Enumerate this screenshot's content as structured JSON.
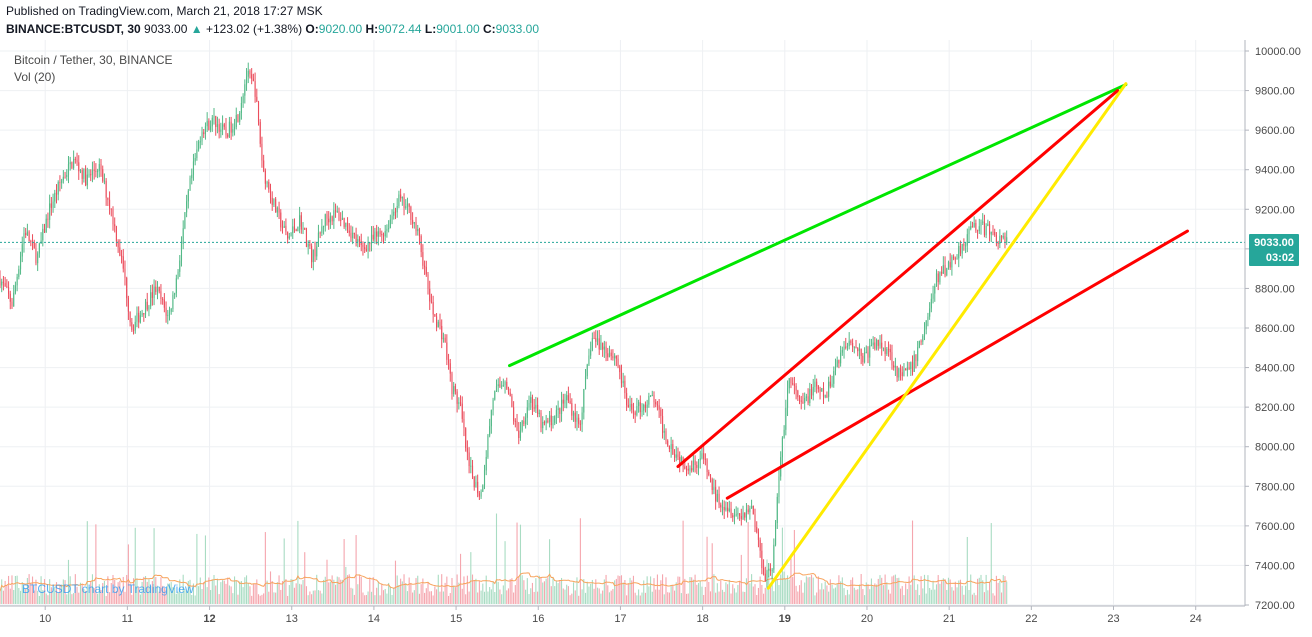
{
  "header": {
    "published": "Published on TradingView.com, March 21, 2018 17:27 MSK",
    "symbol": "BINANCE:BTCUSDT, 30",
    "last": "9033.00",
    "change": "+123.02 (+1.38%)",
    "open_label": "O:",
    "open": "9020.00",
    "high_label": "H:",
    "high": "9072.44",
    "low_label": "L:",
    "low": "9001.00",
    "close_label": "C:",
    "close": "9033.00"
  },
  "legend": {
    "title": "Bitcoin / Tether, 30, BINANCE",
    "volume": "Vol (20)"
  },
  "watermark": "BTCUSDT chart by TradingView",
  "price_badge": {
    "price": "9033.00",
    "countdown": "03:02"
  },
  "colors": {
    "up": "#53b987",
    "down": "#eb4d5c",
    "vol_up": "#a9dcc3",
    "vol_down": "#f5a6ae",
    "vol_ma": "#f7a35c",
    "green_line": "#00e600",
    "red_line": "#ff0000",
    "yellow_line": "#ffeb00",
    "price_line": "#26a69a",
    "watermark": "#2196f3"
  },
  "chart_data": {
    "type": "candlestick",
    "symbol": "BTCUSDT",
    "interval": "30",
    "exchange": "BINANCE",
    "y_axis": {
      "ylim": [
        7200,
        10000
      ],
      "ticks": [
        "10000.00",
        "9800.00",
        "9600.00",
        "9400.00",
        "9200.00",
        "9000.00",
        "8800.00",
        "8600.00",
        "8400.00",
        "8200.00",
        "8000.00",
        "7800.00",
        "7600.00",
        "7400.00",
        "7200.00"
      ]
    },
    "x_axis": {
      "ticks": [
        {
          "label": "10",
          "x": 10
        },
        {
          "label": "11",
          "x": 11
        },
        {
          "label": "12",
          "x": 12,
          "bold": true
        },
        {
          "label": "13",
          "x": 13
        },
        {
          "label": "14",
          "x": 14
        },
        {
          "label": "15",
          "x": 15
        },
        {
          "label": "16",
          "x": 16
        },
        {
          "label": "17",
          "x": 17
        },
        {
          "label": "18",
          "x": 18
        },
        {
          "label": "19",
          "x": 19,
          "bold": true
        },
        {
          "label": "20",
          "x": 20
        },
        {
          "label": "21",
          "x": 21
        },
        {
          "label": "22",
          "x": 22
        },
        {
          "label": "23",
          "x": 23
        },
        {
          "label": "24",
          "x": 24
        }
      ],
      "xlim": [
        9.45,
        24.6
      ]
    },
    "price_path": [
      [
        9.45,
        8850
      ],
      [
        9.6,
        8720
      ],
      [
        9.75,
        9100
      ],
      [
        9.9,
        8950
      ],
      [
        10.05,
        9200
      ],
      [
        10.2,
        9350
      ],
      [
        10.35,
        9450
      ],
      [
        10.5,
        9350
      ],
      [
        10.65,
        9420
      ],
      [
        10.8,
        9200
      ],
      [
        10.95,
        8900
      ],
      [
        11.05,
        8600
      ],
      [
        11.2,
        8700
      ],
      [
        11.35,
        8800
      ],
      [
        11.5,
        8650
      ],
      [
        11.6,
        8850
      ],
      [
        11.75,
        9300
      ],
      [
        11.9,
        9600
      ],
      [
        12.05,
        9650
      ],
      [
        12.2,
        9580
      ],
      [
        12.35,
        9680
      ],
      [
        12.45,
        9880
      ],
      [
        12.55,
        9820
      ],
      [
        12.65,
        9400
      ],
      [
        12.8,
        9200
      ],
      [
        12.95,
        9050
      ],
      [
        13.1,
        9150
      ],
      [
        13.25,
        8950
      ],
      [
        13.4,
        9150
      ],
      [
        13.55,
        9180
      ],
      [
        13.7,
        9100
      ],
      [
        13.85,
        9000
      ],
      [
        14.0,
        9050
      ],
      [
        14.15,
        9100
      ],
      [
        14.3,
        9250
      ],
      [
        14.45,
        9180
      ],
      [
        14.55,
        9050
      ],
      [
        14.7,
        8700
      ],
      [
        14.85,
        8550
      ],
      [
        14.95,
        8300
      ],
      [
        15.05,
        8200
      ],
      [
        15.15,
        7900
      ],
      [
        15.3,
        7750
      ],
      [
        15.45,
        8250
      ],
      [
        15.6,
        8350
      ],
      [
        15.75,
        8050
      ],
      [
        15.9,
        8250
      ],
      [
        16.05,
        8100
      ],
      [
        16.2,
        8150
      ],
      [
        16.35,
        8250
      ],
      [
        16.5,
        8100
      ],
      [
        16.65,
        8550
      ],
      [
        16.8,
        8500
      ],
      [
        16.95,
        8450
      ],
      [
        17.1,
        8180
      ],
      [
        17.25,
        8200
      ],
      [
        17.4,
        8250
      ],
      [
        17.55,
        8050
      ],
      [
        17.7,
        7950
      ],
      [
        17.85,
        7900
      ],
      [
        18.0,
        7950
      ],
      [
        18.15,
        7750
      ],
      [
        18.3,
        7700
      ],
      [
        18.45,
        7650
      ],
      [
        18.6,
        7700
      ],
      [
        18.75,
        7350
      ],
      [
        18.85,
        7400
      ],
      [
        18.95,
        7950
      ],
      [
        19.05,
        8350
      ],
      [
        19.2,
        8200
      ],
      [
        19.35,
        8300
      ],
      [
        19.5,
        8250
      ],
      [
        19.65,
        8450
      ],
      [
        19.8,
        8550
      ],
      [
        19.95,
        8450
      ],
      [
        20.1,
        8520
      ],
      [
        20.25,
        8500
      ],
      [
        20.4,
        8350
      ],
      [
        20.55,
        8400
      ],
      [
        20.7,
        8600
      ],
      [
        20.85,
        8850
      ],
      [
        20.95,
        8900
      ],
      [
        21.05,
        8950
      ],
      [
        21.2,
        9050
      ],
      [
        21.3,
        9120
      ],
      [
        21.45,
        9100
      ],
      [
        21.6,
        9050
      ],
      [
        21.7,
        9033
      ]
    ],
    "last_price": 9033.0,
    "trendlines": [
      {
        "color": "green",
        "from": [
          15.65,
          8410
        ],
        "to": [
          23.15,
          9830
        ]
      },
      {
        "color": "red",
        "from": [
          17.7,
          7900
        ],
        "to": [
          23.05,
          9800
        ]
      },
      {
        "color": "red",
        "from": [
          18.3,
          7740
        ],
        "to": [
          23.9,
          9090
        ]
      },
      {
        "color": "yellow",
        "from": [
          18.8,
          7285
        ],
        "to": [
          23.15,
          9835
        ]
      }
    ],
    "volume_series": "Vol (20)"
  }
}
